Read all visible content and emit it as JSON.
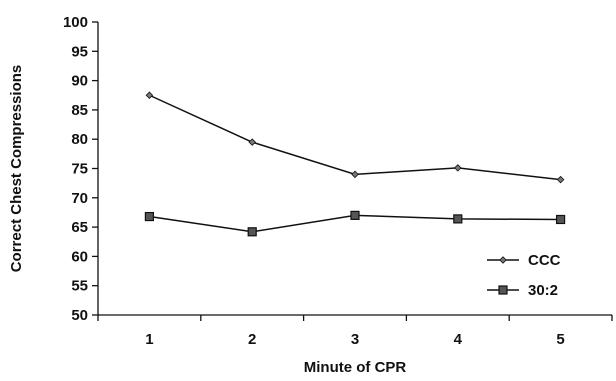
{
  "chart_data": {
    "type": "line",
    "title": "",
    "xlabel": "Minute of CPR",
    "ylabel": "Correct Chest Compressions",
    "categories": [
      "1",
      "2",
      "3",
      "4",
      "5"
    ],
    "ylim": [
      50,
      100
    ],
    "yticks": [
      50,
      55,
      60,
      65,
      70,
      75,
      80,
      85,
      90,
      95,
      100
    ],
    "grid": false,
    "legend_position": "bottom-right",
    "series": [
      {
        "name": "CCC",
        "marker": "diamond",
        "color": "#111111",
        "values": [
          87.5,
          79.5,
          74.0,
          75.1,
          73.1
        ]
      },
      {
        "name": "30:2",
        "marker": "square",
        "color": "#111111",
        "values": [
          66.8,
          64.2,
          67.0,
          66.4,
          66.3
        ]
      }
    ]
  }
}
